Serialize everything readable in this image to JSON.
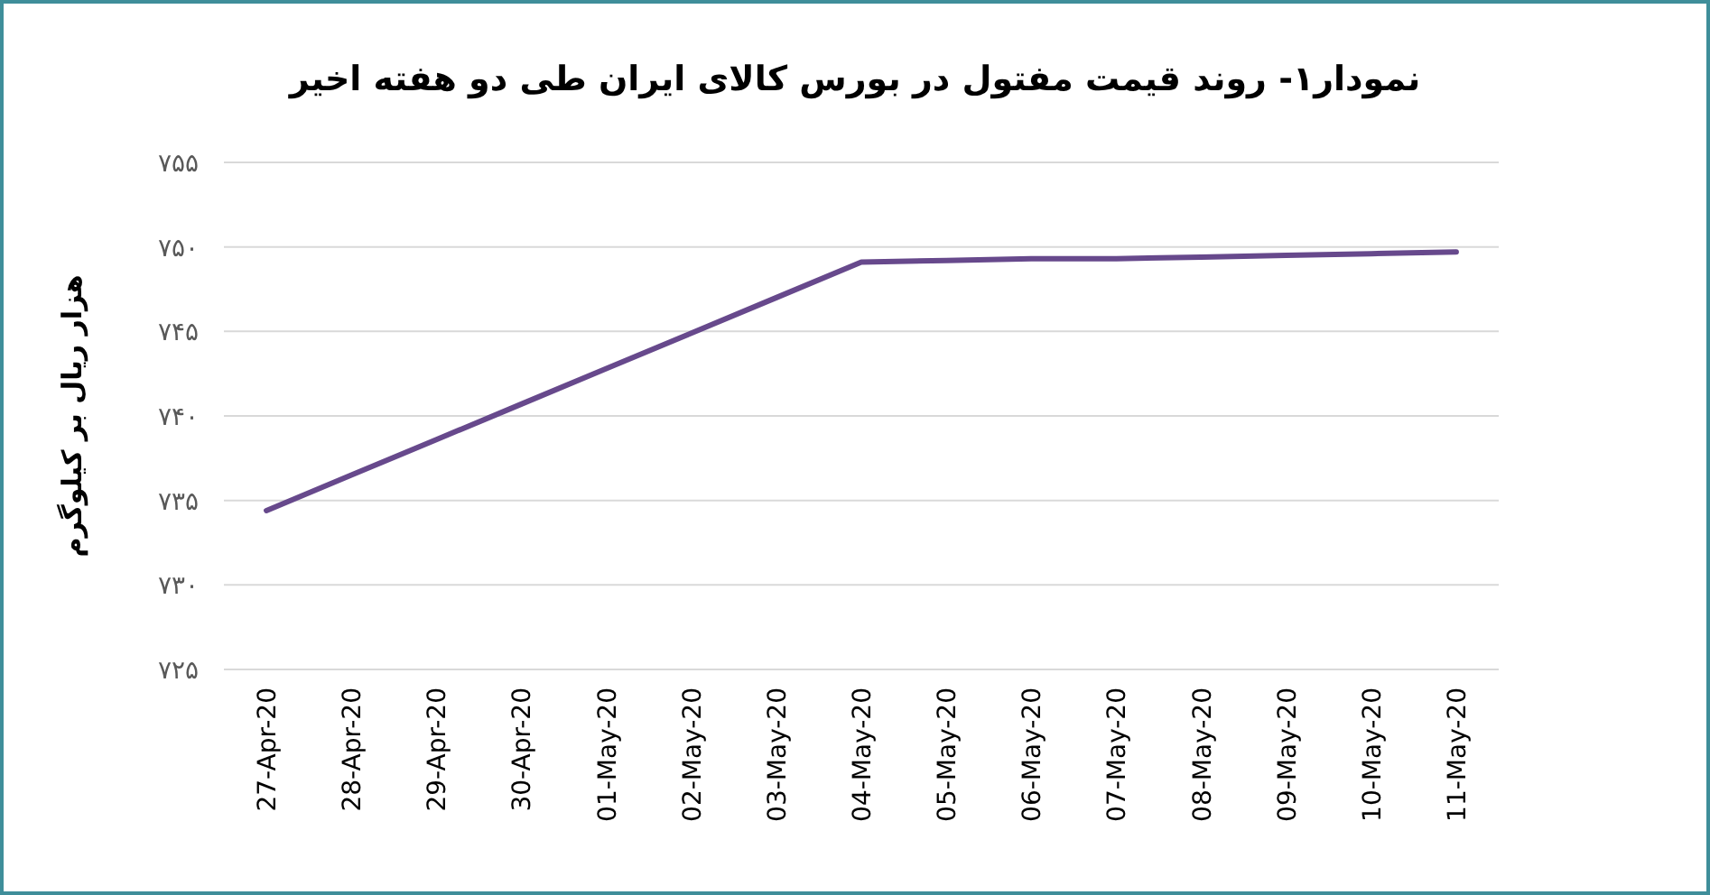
{
  "chart_data": {
    "type": "line",
    "title": "نمودار۱- روند قیمت مفتول در بورس کالای ایران طی دو هفته اخیر",
    "ylabel": "هزار ریال بر کیلوگرم",
    "categories": [
      "27-Apr-20",
      "28-Apr-20",
      "29-Apr-20",
      "30-Apr-20",
      "01-May-20",
      "02-May-20",
      "03-May-20",
      "04-May-20",
      "05-May-20",
      "06-May-20",
      "07-May-20",
      "08-May-20",
      "09-May-20",
      "10-May-20",
      "11-May-20"
    ],
    "series": [
      {
        "color": "#67498c",
        "values": [
          734.4,
          736.5,
          738.6,
          740.7,
          742.8,
          744.9,
          747.0,
          749.1,
          749.2,
          749.3,
          749.3,
          749.4,
          749.5,
          749.6,
          749.7
        ]
      }
    ],
    "ylim": [
      725,
      755
    ],
    "yticks": [
      {
        "value": 725,
        "label": "۷۲۵"
      },
      {
        "value": 730,
        "label": "۷۳۰"
      },
      {
        "value": 735,
        "label": "۷۳۵"
      },
      {
        "value": 740,
        "label": "۷۴۰"
      },
      {
        "value": 745,
        "label": "۷۴۵"
      },
      {
        "value": 750,
        "label": "۷۵۰"
      },
      {
        "value": 755,
        "label": "۷۵۵"
      }
    ],
    "grid": "y"
  }
}
